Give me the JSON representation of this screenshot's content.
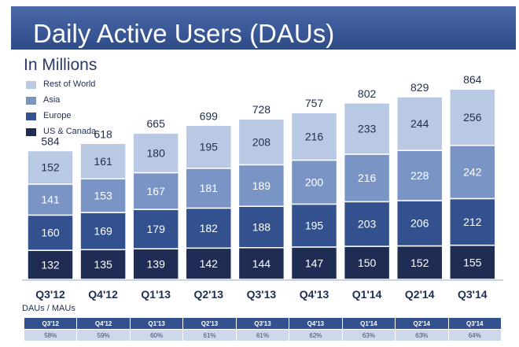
{
  "header": {
    "title": "Daily Active Users (DAUs)",
    "subtitle": "In Millions"
  },
  "colors": {
    "title_bar": "#3b5998",
    "us_canada": "#1f2d55",
    "europe": "#33508f",
    "asia": "#7b94c6",
    "rest_of_world": "#b9c8e3",
    "segment_text_light": "#ffffff",
    "segment_text_dark": "#1e2d52"
  },
  "legend": [
    {
      "label": "Rest of World",
      "color": "#b9c8e3"
    },
    {
      "label": "Asia",
      "color": "#7b94c6"
    },
    {
      "label": "Europe",
      "color": "#33508f"
    },
    {
      "label": "US & Canada",
      "color": "#1f2d55"
    }
  ],
  "chart_data": {
    "type": "bar",
    "stacked": true,
    "categories": [
      "Q3'12",
      "Q4'12",
      "Q1'13",
      "Q2'13",
      "Q3'13",
      "Q4'13",
      "Q1'14",
      "Q2'14",
      "Q3'14"
    ],
    "series": [
      {
        "name": "US & Canada",
        "values": [
          132,
          135,
          139,
          142,
          144,
          147,
          150,
          152,
          155
        ]
      },
      {
        "name": "Europe",
        "values": [
          160,
          169,
          179,
          182,
          188,
          195,
          203,
          206,
          212
        ]
      },
      {
        "name": "Asia",
        "values": [
          141,
          153,
          167,
          181,
          189,
          200,
          216,
          228,
          242
        ]
      },
      {
        "name": "Rest of World",
        "values": [
          152,
          161,
          180,
          195,
          208,
          216,
          233,
          244,
          256
        ]
      }
    ],
    "totals": [
      584,
      618,
      665,
      699,
      728,
      757,
      802,
      829,
      864
    ],
    "title": "Daily Active Users (DAUs)",
    "subtitle": "In Millions",
    "legend_position": "top-left",
    "grid": false
  },
  "dau_mau": {
    "label": "DAUs / MAUs",
    "quarters": [
      "Q3'12",
      "Q4'12",
      "Q1'13",
      "Q2'13",
      "Q3'13",
      "Q4'13",
      "Q1'14",
      "Q2'14",
      "Q3'14"
    ],
    "values": [
      "58%",
      "59%",
      "60%",
      "61%",
      "61%",
      "62%",
      "63%",
      "63%",
      "64%"
    ]
  }
}
